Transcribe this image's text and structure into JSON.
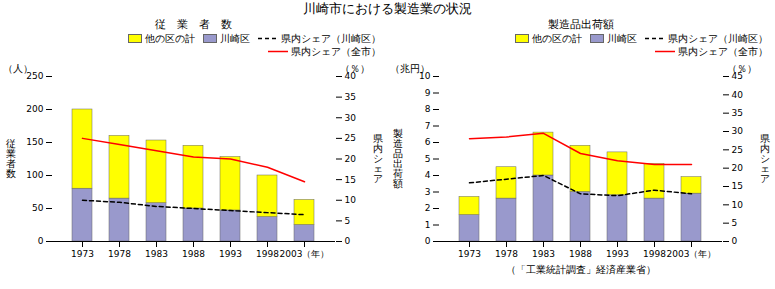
{
  "title": "川崎市における製造業の状況",
  "annotations": [
    "（「工業統計調査」経済産業省）"
  ],
  "chart_data": [
    {
      "type": "bar",
      "stacked": true,
      "subtitle": "従　業　者　数",
      "ylabel": "従\n業\n者\n数",
      "y2label": "県\n内\nシ\nェ\nア",
      "yunit": "（人）",
      "y2unit": "（％）",
      "categories": [
        "1973",
        "1978",
        "1983",
        "1988",
        "1993",
        "1998",
        "2003（年）"
      ],
      "series": [
        {
          "name": "川崎区",
          "type": "bar",
          "color": "#9999CC",
          "values": [
            80,
            65,
            58,
            50,
            47,
            37,
            25
          ]
        },
        {
          "name": "他の区の計",
          "type": "bar",
          "color": "#FFFF00",
          "values": [
            120,
            95,
            95,
            95,
            81,
            63,
            38
          ]
        },
        {
          "name": "県内シェア（川崎区）",
          "type": "line",
          "color": "#000000",
          "line_style": "dashed",
          "axis": "y2",
          "values": [
            10.0,
            9.5,
            8.5,
            8.0,
            7.5,
            7.0,
            6.5
          ]
        },
        {
          "name": "県内シェア（全市）",
          "type": "line",
          "color": "#FF0000",
          "line_style": "solid",
          "axis": "y2",
          "values": [
            25.0,
            23.5,
            22.0,
            20.5,
            20.0,
            18.0,
            14.5
          ]
        }
      ],
      "ylim": [
        0,
        250
      ],
      "yticks": [
        0,
        50,
        100,
        150,
        200,
        250
      ],
      "y2lim": [
        0,
        40
      ],
      "y2ticks": [
        0,
        5,
        10,
        15,
        20,
        25,
        30,
        35,
        40
      ],
      "grid": false,
      "legend": "upper right"
    },
    {
      "type": "bar",
      "stacked": true,
      "subtitle": "製造品出荷額",
      "ylabel": "製\n造\n品\n出\n荷\n額",
      "y2label": "県\n内\nシ\nェ\nア",
      "yunit": "（兆円）",
      "y2unit": "（％）",
      "categories": [
        "1973",
        "1978",
        "1983",
        "1988",
        "1993",
        "1998",
        "2003（年）"
      ],
      "series": [
        {
          "name": "川崎区",
          "type": "bar",
          "color": "#9999CC",
          "values": [
            1.6,
            2.6,
            4.0,
            3.0,
            2.8,
            2.6,
            2.9
          ]
        },
        {
          "name": "他の区の計",
          "type": "bar",
          "color": "#FFFF00",
          "values": [
            1.1,
            1.9,
            2.6,
            2.8,
            2.6,
            2.1,
            1.0
          ]
        },
        {
          "name": "県内シェア（川崎区）",
          "type": "line",
          "color": "#000000",
          "line_style": "dashed",
          "axis": "y2",
          "values": [
            16.0,
            17.0,
            18.0,
            13.0,
            12.5,
            14.0,
            13.0
          ]
        },
        {
          "name": "県内シェア（全市）",
          "type": "line",
          "color": "#FF0000",
          "line_style": "solid",
          "axis": "y2",
          "values": [
            28.0,
            28.5,
            29.5,
            24.0,
            22.0,
            21.0,
            21.0
          ]
        }
      ],
      "ylim": [
        0,
        10
      ],
      "yticks": [
        0,
        1,
        2,
        3,
        4,
        5,
        6,
        7,
        8,
        9,
        10
      ],
      "y2lim": [
        0,
        45
      ],
      "y2ticks": [
        0,
        5,
        10,
        15,
        20,
        25,
        30,
        35,
        40,
        45
      ],
      "grid": false,
      "legend": "upper right"
    }
  ]
}
